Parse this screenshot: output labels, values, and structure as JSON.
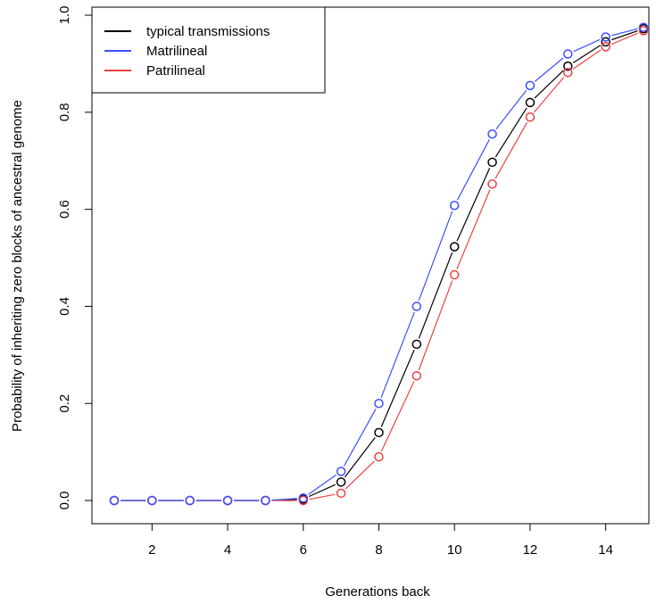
{
  "chart_data": {
    "type": "line",
    "xlabel": "Generations back",
    "ylabel": "Probability of inheriting zero blocks of ancestral genome",
    "xlim": [
      1,
      15
    ],
    "ylim": [
      0,
      1
    ],
    "x_ticks": [
      2,
      4,
      6,
      8,
      10,
      12,
      14
    ],
    "y_ticks": [
      0.0,
      0.2,
      0.4,
      0.6,
      0.8,
      1.0
    ],
    "y_tick_labels": [
      "0.0",
      "0.2",
      "0.4",
      "0.6",
      "0.8",
      "1.0"
    ],
    "grid": false,
    "markers": "open-circle",
    "legend_position": "top-left",
    "x": [
      1,
      2,
      3,
      4,
      5,
      6,
      7,
      8,
      9,
      10,
      11,
      12,
      13,
      14,
      15
    ],
    "series": [
      {
        "name": "typical transmissions",
        "color": "#000000",
        "values": [
          0,
          0,
          0,
          0,
          0,
          0.003,
          0.038,
          0.14,
          0.322,
          0.523,
          0.697,
          0.82,
          0.895,
          0.945,
          0.972
        ]
      },
      {
        "name": "Matrilineal",
        "color": "#3d4fff",
        "values": [
          0,
          0,
          0,
          0,
          0,
          0.005,
          0.06,
          0.2,
          0.4,
          0.608,
          0.755,
          0.855,
          0.92,
          0.955,
          0.975
        ]
      },
      {
        "name": "Patrilineal",
        "color": "#f04040",
        "values": [
          0,
          0,
          0,
          0,
          0,
          0,
          0.015,
          0.09,
          0.257,
          0.465,
          0.652,
          0.79,
          0.882,
          0.935,
          0.968
        ]
      }
    ]
  }
}
